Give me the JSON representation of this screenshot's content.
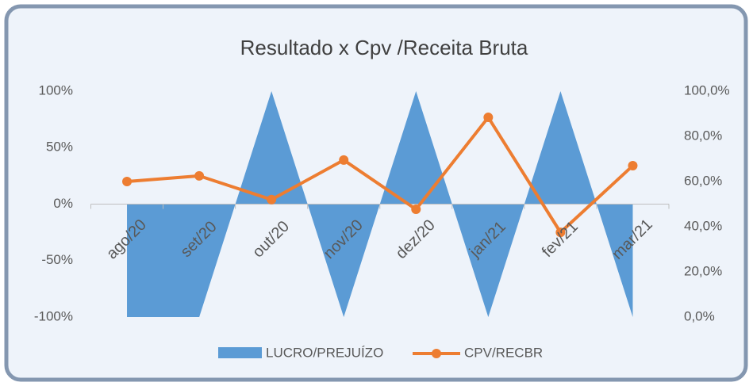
{
  "chart_data": {
    "type": "combo",
    "title": "Resultado x Cpv /Receita Bruta",
    "categories": [
      "ago/20",
      "set/20",
      "out/20",
      "nov/20",
      "dez/20",
      "jan/21",
      "fev/21",
      "mar/21"
    ],
    "series": [
      {
        "name": "LUCRO/PREJUÍZO",
        "type": "area",
        "color": "#5b9bd5",
        "values": [
          -100,
          -100,
          100,
          -100,
          100,
          -100,
          100,
          -100
        ]
      },
      {
        "name": "CPV/RECBR",
        "type": "line",
        "axis": "y2",
        "color": "#ed7d31",
        "values": [
          60.0,
          62.5,
          52.0,
          69.5,
          47.7,
          88.4,
          37.5,
          67.0
        ]
      }
    ],
    "ylim": [
      -100,
      100
    ],
    "yticks": [
      {
        "value": -100,
        "label": "-100%"
      },
      {
        "value": -50,
        "label": "-50%"
      },
      {
        "value": 0,
        "label": "0%"
      },
      {
        "value": 50,
        "label": "50%"
      },
      {
        "value": 100,
        "label": "100%"
      }
    ],
    "y2lim": [
      0,
      100
    ],
    "y2ticks": [
      {
        "value": 0,
        "label": "0,0%"
      },
      {
        "value": 20,
        "label": "20,0%"
      },
      {
        "value": 40,
        "label": "40,0%"
      },
      {
        "value": 60,
        "label": "60,0%"
      },
      {
        "value": 80,
        "label": "80,0%"
      },
      {
        "value": 100,
        "label": "100,0%"
      }
    ],
    "legend": "bottom"
  }
}
